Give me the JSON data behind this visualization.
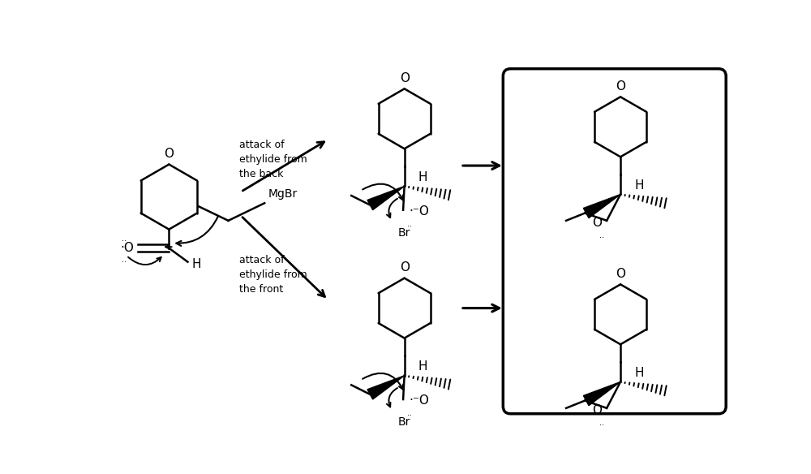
{
  "bg_color": "#ffffff",
  "line_color": "#000000",
  "fig_width": 10.0,
  "fig_height": 5.84,
  "dpi": 100,
  "text_attack_back": "attack of\nethylide from\nthe back",
  "text_attack_front": "attack of\nethylide from\nthe front",
  "text_MgBr": "MgBr",
  "font_size": 9,
  "lw": 1.8
}
